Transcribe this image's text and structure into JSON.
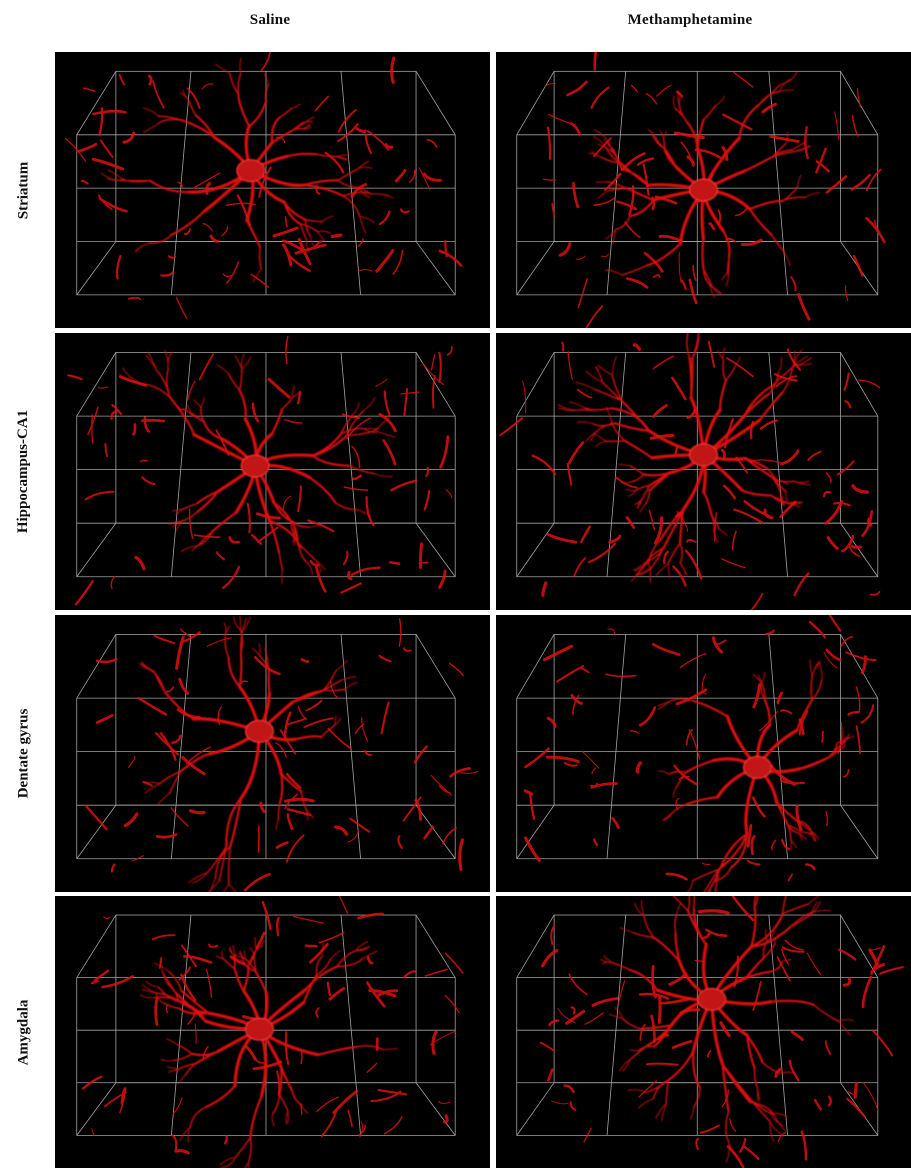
{
  "columns": [
    "Saline",
    "Methamphetamine"
  ],
  "rows": [
    "Striatum",
    "Hippocampus-CA1",
    "Dentate gyrus",
    "Amygdala"
  ],
  "panels": [
    {
      "row": "Striatum",
      "condition": "Saline",
      "cell_x": 0.45,
      "cell_y": 0.43,
      "branch_count": 9,
      "seed": 11
    },
    {
      "row": "Striatum",
      "condition": "Methamphetamine",
      "cell_x": 0.5,
      "cell_y": 0.5,
      "branch_count": 10,
      "seed": 23
    },
    {
      "row": "Hippocampus-CA1",
      "condition": "Saline",
      "cell_x": 0.46,
      "cell_y": 0.48,
      "branch_count": 10,
      "seed": 37
    },
    {
      "row": "Hippocampus-CA1",
      "condition": "Methamphetamine",
      "cell_x": 0.5,
      "cell_y": 0.44,
      "branch_count": 11,
      "seed": 41
    },
    {
      "row": "Dentate gyrus",
      "condition": "Saline",
      "cell_x": 0.47,
      "cell_y": 0.42,
      "branch_count": 8,
      "seed": 53
    },
    {
      "row": "Dentate gyrus",
      "condition": "Methamphetamine",
      "cell_x": 0.63,
      "cell_y": 0.55,
      "branch_count": 8,
      "seed": 67
    },
    {
      "row": "Amygdala",
      "condition": "Saline",
      "cell_x": 0.47,
      "cell_y": 0.49,
      "branch_count": 11,
      "seed": 71
    },
    {
      "row": "Amygdala",
      "condition": "Methamphetamine",
      "cell_x": 0.52,
      "cell_y": 0.38,
      "branch_count": 10,
      "seed": 83
    }
  ],
  "colors": {
    "background": "#000000",
    "signal": "#e01010",
    "grid": "#d8d8d8"
  }
}
